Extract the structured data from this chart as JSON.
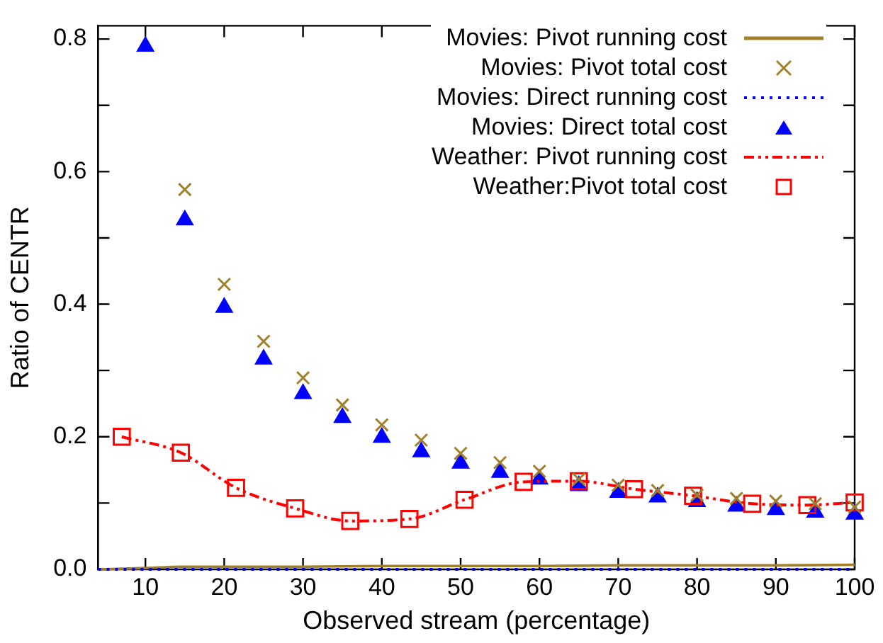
{
  "chart_data": {
    "type": "scatter",
    "xlabel": "Observed stream (percentage)",
    "ylabel": "Ratio of CENTR",
    "xlim": [
      4,
      100
    ],
    "ylim": [
      0,
      0.82
    ],
    "xticks": [
      10,
      20,
      30,
      40,
      50,
      60,
      70,
      80,
      90,
      100
    ],
    "yticks": [
      {
        "value": 0,
        "label": "0.0"
      },
      {
        "value": 0.1,
        "label": null
      },
      {
        "value": 0.2,
        "label": "0.2"
      },
      {
        "value": 0.3,
        "label": null
      },
      {
        "value": 0.4,
        "label": "0.4"
      },
      {
        "value": 0.5,
        "label": null
      },
      {
        "value": 0.6,
        "label": "0.6"
      },
      {
        "value": 0.7,
        "label": null
      },
      {
        "value": 0.8,
        "label": "0.8"
      }
    ],
    "grid": false,
    "legend": "top right",
    "series": [
      {
        "name": "Movies: Pivot running cost",
        "type": "line",
        "color": "#a08028",
        "marker": "none",
        "line_style": "solid",
        "x": [
          4,
          10,
          15,
          20,
          30,
          40,
          50,
          60,
          70,
          80,
          90,
          100
        ],
        "values": [
          0,
          0.002,
          0.004,
          0.004,
          0.004,
          0.005,
          0.005,
          0.005,
          0.006,
          0.006,
          0.006,
          0.007
        ]
      },
      {
        "name": "Movies: Pivot total cost",
        "color": "#a08028",
        "marker": "cross",
        "x": [
          15,
          20,
          25,
          30,
          35,
          40,
          45,
          50,
          55,
          60,
          65,
          70,
          75,
          80,
          85,
          90,
          95,
          100
        ],
        "values": [
          0.573,
          0.43,
          0.344,
          0.289,
          0.248,
          0.218,
          0.195,
          0.175,
          0.161,
          0.148,
          0.136,
          0.127,
          0.119,
          0.112,
          0.107,
          0.103,
          0.099,
          0.094
        ]
      },
      {
        "name": "Movies: Direct running cost",
        "type": "line",
        "color": "#0000ff",
        "marker": "none",
        "line_style": "dotted",
        "x": [
          4,
          100
        ],
        "values": [
          0,
          0
        ]
      },
      {
        "name": "Movies: Direct total cost",
        "color": "#0000ff",
        "marker": "triangle",
        "x": [
          10,
          15,
          20,
          25,
          30,
          35,
          40,
          45,
          50,
          55,
          60,
          65,
          70,
          75,
          80,
          85,
          90,
          95,
          100
        ],
        "values": [
          0.789,
          0.527,
          0.395,
          0.317,
          0.265,
          0.229,
          0.199,
          0.177,
          0.16,
          0.146,
          0.136,
          0.126,
          0.116,
          0.109,
          0.102,
          0.095,
          0.09,
          0.086,
          0.083
        ]
      },
      {
        "name": "Weather: Pivot running cost",
        "type": "line",
        "color": "#ff0000",
        "marker": "none",
        "line_style": "dashed",
        "x": [
          7,
          14.5,
          21.5,
          29,
          36,
          43.5,
          50.5,
          58,
          65,
          72,
          79.5,
          87,
          94,
          100
        ],
        "values": [
          0.2,
          0.176,
          0.123,
          0.092,
          0.073,
          0.076,
          0.105,
          0.132,
          0.133,
          0.121,
          0.111,
          0.099,
          0.097,
          0.101
        ]
      },
      {
        "name": "Weather:Pivot total cost",
        "color": "#ff0000",
        "marker": "square",
        "x": [
          7,
          14.5,
          21.5,
          29,
          36,
          43.5,
          50.5,
          58,
          65,
          72,
          79.5,
          87,
          94,
          100
        ],
        "values": [
          0.2,
          0.176,
          0.123,
          0.092,
          0.073,
          0.076,
          0.105,
          0.132,
          0.133,
          0.121,
          0.111,
          0.099,
          0.097,
          0.101
        ]
      }
    ]
  }
}
